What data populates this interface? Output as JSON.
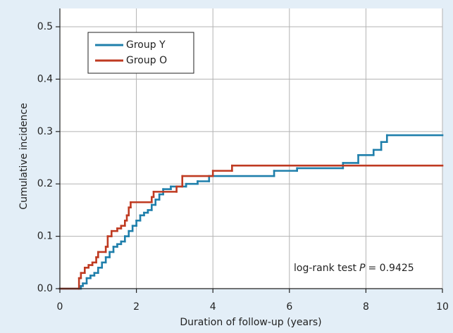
{
  "chart_data": {
    "type": "step",
    "y_label": "Cumulative incidence",
    "x_label": "Duration of follow-up (years)",
    "xlim": [
      0,
      10
    ],
    "ylim": [
      0,
      0.535
    ],
    "xticks": [
      0,
      2,
      4,
      6,
      8,
      10
    ],
    "yticks": [
      {
        "value": 0,
        "label": "0.0"
      },
      0.1,
      0.2,
      0.3,
      0.4,
      0.5
    ],
    "grid": true,
    "legend": "top-left",
    "annotation": [
      "log-rank test",
      "P",
      "= 0.9425"
    ],
    "series": [
      {
        "name": "Group Y",
        "color": "#1f7fab",
        "x": [
          0,
          0.55,
          0.6,
          0.7,
          0.8,
          0.9,
          1.0,
          1.1,
          1.2,
          1.3,
          1.4,
          1.5,
          1.6,
          1.7,
          1.8,
          1.9,
          2.0,
          2.1,
          2.2,
          2.3,
          2.4,
          2.5,
          2.6,
          2.7,
          2.9,
          3.3,
          3.6,
          3.9,
          5.6,
          6.2,
          7.4,
          7.8,
          8.2,
          8.4,
          8.55
        ],
        "values": [
          0,
          0.005,
          0.01,
          0.02,
          0.025,
          0.03,
          0.04,
          0.05,
          0.06,
          0.07,
          0.08,
          0.085,
          0.09,
          0.1,
          0.11,
          0.12,
          0.13,
          0.14,
          0.145,
          0.15,
          0.16,
          0.17,
          0.18,
          0.19,
          0.195,
          0.2,
          0.205,
          0.215,
          0.225,
          0.23,
          0.24,
          0.255,
          0.265,
          0.28,
          0.293
        ]
      },
      {
        "name": "Group O",
        "color": "#bf3a21",
        "x": [
          0,
          0.5,
          0.55,
          0.65,
          0.75,
          0.85,
          0.95,
          1.0,
          1.2,
          1.25,
          1.35,
          1.5,
          1.6,
          1.7,
          1.75,
          1.8,
          1.85,
          2.4,
          2.45,
          3.05,
          3.2,
          4.0,
          4.5
        ],
        "values": [
          0,
          0.02,
          0.03,
          0.04,
          0.045,
          0.05,
          0.06,
          0.07,
          0.08,
          0.1,
          0.11,
          0.115,
          0.12,
          0.13,
          0.14,
          0.155,
          0.165,
          0.175,
          0.185,
          0.195,
          0.215,
          0.225,
          0.235
        ]
      }
    ]
  }
}
